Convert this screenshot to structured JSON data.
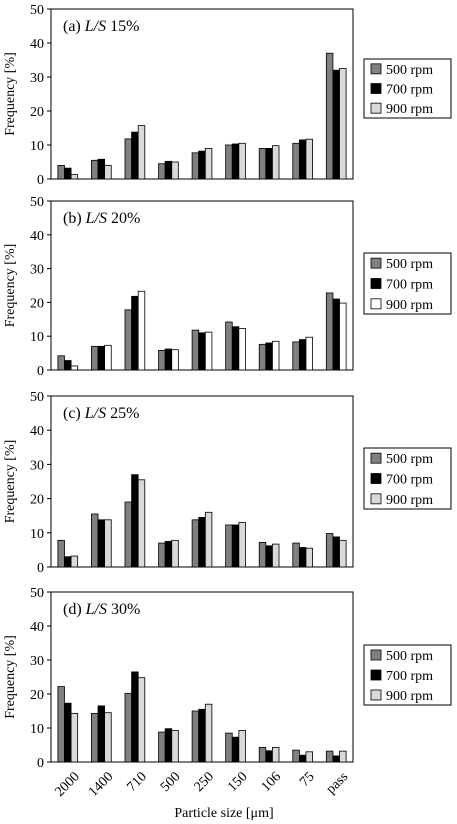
{
  "chart_data": [
    {
      "type": "bar",
      "panel_prefix": "(a) ",
      "panel_label": "L/S",
      "panel_suffix": " 15%",
      "ylabel": "Frequency [%]",
      "ylim": [
        0,
        50
      ],
      "yticks": [
        0,
        10,
        20,
        30,
        40,
        50
      ],
      "categories": [
        "2000",
        "1400",
        "710",
        "500",
        "250",
        "150",
        "106",
        "75",
        "pass"
      ],
      "series": [
        {
          "name": "500 rpm",
          "color": "#808080",
          "values": [
            4.0,
            5.5,
            11.8,
            4.5,
            7.7,
            10.0,
            9.0,
            10.5,
            37.0
          ]
        },
        {
          "name": "700 rpm",
          "color": "#000000",
          "values": [
            3.2,
            5.8,
            13.8,
            5.2,
            8.2,
            10.3,
            9.0,
            11.5,
            32.0
          ]
        },
        {
          "name": "900 rpm",
          "color": "#d9d9d9",
          "values": [
            1.3,
            4.0,
            15.7,
            5.0,
            9.0,
            10.5,
            9.8,
            11.7,
            32.5
          ]
        }
      ]
    },
    {
      "type": "bar",
      "panel_prefix": "(b) ",
      "panel_label": "L/S",
      "panel_suffix": " 20%",
      "ylabel": "Frequency [%]",
      "ylim": [
        0,
        50
      ],
      "yticks": [
        0,
        10,
        20,
        30,
        40,
        50
      ],
      "categories": [
        "2000",
        "1400",
        "710",
        "500",
        "250",
        "150",
        "106",
        "75",
        "pass"
      ],
      "series": [
        {
          "name": "500 rpm",
          "color": "#808080",
          "values": [
            4.2,
            7.0,
            17.8,
            5.8,
            11.8,
            14.2,
            7.6,
            8.3,
            22.8
          ]
        },
        {
          "name": "700 rpm",
          "color": "#000000",
          "values": [
            2.8,
            7.0,
            21.8,
            6.2,
            11.0,
            12.8,
            8.0,
            9.0,
            21.0
          ]
        },
        {
          "name": "900 rpm",
          "color": "#ffffff",
          "values": [
            1.2,
            7.3,
            23.3,
            6.0,
            11.2,
            12.3,
            8.5,
            9.7,
            19.8
          ]
        }
      ]
    },
    {
      "type": "bar",
      "panel_prefix": "(c) ",
      "panel_label": "L/S",
      "panel_suffix": " 25%",
      "ylabel": "Frequency [%]",
      "ylim": [
        0,
        50
      ],
      "yticks": [
        0,
        10,
        20,
        30,
        40,
        50
      ],
      "categories": [
        "2000",
        "1400",
        "710",
        "500",
        "250",
        "150",
        "106",
        "75",
        "pass"
      ],
      "series": [
        {
          "name": "500 rpm",
          "color": "#808080",
          "values": [
            7.8,
            15.5,
            19.0,
            7.0,
            13.8,
            12.3,
            7.2,
            7.0,
            9.8
          ]
        },
        {
          "name": "700 rpm",
          "color": "#000000",
          "values": [
            3.0,
            13.8,
            27.0,
            7.5,
            14.5,
            12.3,
            6.2,
            5.7,
            8.8
          ]
        },
        {
          "name": "900 rpm",
          "color": "#d9d9d9",
          "values": [
            3.2,
            13.8,
            25.5,
            7.8,
            16.0,
            13.0,
            6.7,
            5.5,
            7.8
          ]
        }
      ]
    },
    {
      "type": "bar",
      "panel_prefix": "(d) ",
      "panel_label": "L/S",
      "panel_suffix": " 30%",
      "ylabel": "Frequency [%]",
      "ylim": [
        0,
        50
      ],
      "yticks": [
        0,
        10,
        20,
        30,
        40,
        50
      ],
      "xlabel": "Particle size [μm]",
      "categories": [
        "2000",
        "1400",
        "710",
        "500",
        "250",
        "150",
        "106",
        "75",
        "pass"
      ],
      "series": [
        {
          "name": "500 rpm",
          "color": "#808080",
          "values": [
            22.2,
            14.3,
            20.2,
            8.8,
            15.0,
            8.5,
            4.3,
            3.5,
            3.2
          ]
        },
        {
          "name": "700 rpm",
          "color": "#000000",
          "values": [
            17.3,
            16.5,
            26.5,
            9.8,
            15.5,
            7.3,
            3.3,
            2.0,
            1.8
          ]
        },
        {
          "name": "900 rpm",
          "color": "#d9d9d9",
          "values": [
            14.3,
            14.5,
            24.8,
            9.3,
            17.0,
            9.3,
            4.3,
            3.0,
            3.2
          ]
        }
      ]
    }
  ]
}
